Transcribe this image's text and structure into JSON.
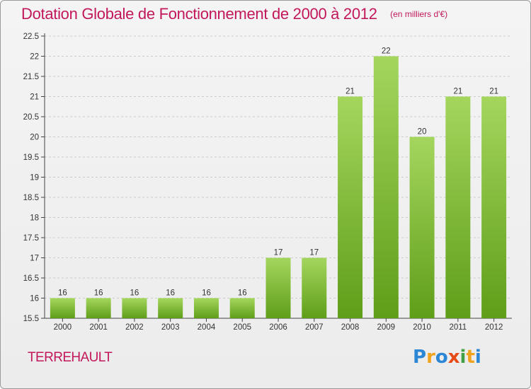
{
  "colors": {
    "title": "#c2185b",
    "bar_top": "#a4d65e",
    "bar_bottom": "#5f9e19",
    "axis": "#444444",
    "grid": "#cccccc"
  },
  "header": {
    "title": "Dotation Globale de Fonctionnement de 2000 à 2012",
    "subtitle": "(en milliers d'€)"
  },
  "footer": {
    "place": "TERREHAULT",
    "logo_text": "Proxiti",
    "logo_colors": [
      "#2b86d6",
      "#f0a31c",
      "#2b86d6",
      "#e64a19",
      "#43a047",
      "#f0a31c",
      "#2b86d6"
    ]
  },
  "chart_data": {
    "type": "bar",
    "title": "Dotation Globale de Fonctionnement de 2000 à 2012",
    "subtitle": "(en milliers d'€)",
    "xlabel": "",
    "ylabel": "",
    "categories": [
      "2000",
      "2001",
      "2002",
      "2003",
      "2004",
      "2005",
      "2006",
      "2007",
      "2008",
      "2009",
      "2010",
      "2011",
      "2012"
    ],
    "values": [
      16,
      16,
      16,
      16,
      16,
      16,
      17,
      17,
      21,
      22,
      20,
      21,
      21
    ],
    "data_labels": [
      "16",
      "16",
      "16",
      "16",
      "16",
      "16",
      "17",
      "17",
      "21",
      "22",
      "20",
      "21",
      "21"
    ],
    "ylim": [
      15.5,
      22.5
    ],
    "yticks": [
      "15.5",
      "16",
      "16.5",
      "17",
      "17.5",
      "18",
      "18.5",
      "19",
      "19.5",
      "20",
      "20.5",
      "21",
      "21.5",
      "22",
      "22.5"
    ],
    "grid": true,
    "legend": "none"
  }
}
